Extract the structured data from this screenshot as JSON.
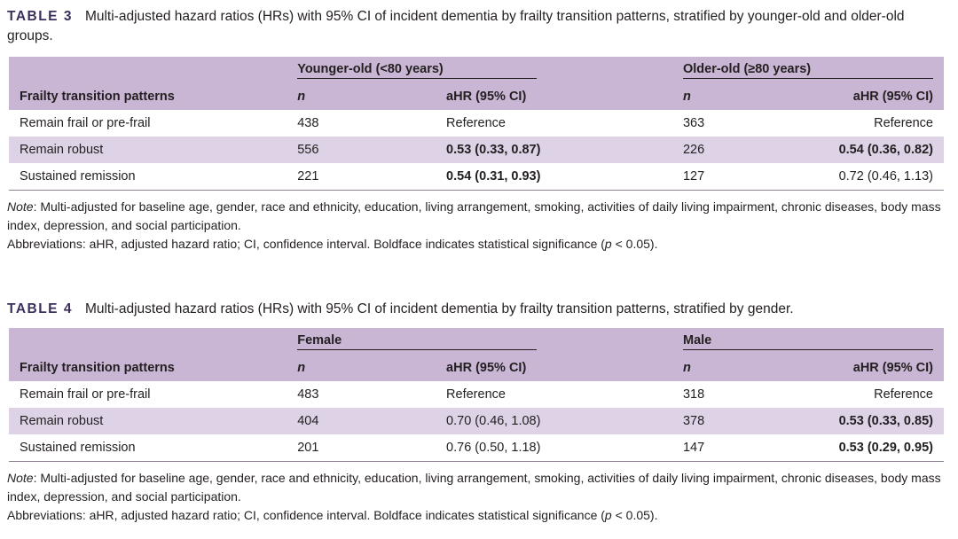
{
  "tables": [
    {
      "number": "TABLE 3",
      "caption": "Multi-adjusted hazard ratios (HRs) with 95% CI of incident dementia by frailty transition patterns, stratified by younger-old and older-old groups.",
      "group1": "Younger-old (<80 years)",
      "group2": "Older-old (≥80 years)",
      "row_header": "Frailty transition patterns",
      "n_label": "n",
      "hr_label": "aHR (95% CI)",
      "rows": [
        {
          "label": "Remain frail or pre-frail",
          "n1": "438",
          "hr1": "Reference",
          "n2": "363",
          "hr2": "Reference"
        },
        {
          "label": "Remain robust",
          "n1": "556",
          "hr1": "0.53 (0.33, 0.87)",
          "n2": "226",
          "hr2": "0.54 (0.36, 0.82)"
        },
        {
          "label": "Sustained remission",
          "n1": "221",
          "hr1": "0.54 (0.31, 0.93)",
          "n2": "127",
          "hr2": "0.72 (0.46, 1.13)"
        }
      ],
      "note_label": "Note",
      "note_text": ": Multi-adjusted for baseline age, gender, race and ethnicity, education, living arrangement, smoking, activities of daily living impairment, chronic diseases, body mass index, depression, and social participation.",
      "abbr_text": "Abbreviations: aHR, adjusted hazard ratio; CI, confidence interval. Boldface indicates statistical significance (",
      "abbr_p": "p",
      "abbr_end": " < 0.05)."
    },
    {
      "number": "TABLE 4",
      "caption": "Multi-adjusted hazard ratios (HRs) with 95% CI of incident dementia by frailty transition patterns, stratified by gender.",
      "group1": "Female",
      "group2": "Male",
      "row_header": "Frailty transition patterns",
      "n_label": "n",
      "hr_label": "aHR (95% CI)",
      "rows": [
        {
          "label": "Remain frail or pre-frail",
          "n1": "483",
          "hr1": "Reference",
          "n2": "318",
          "hr2": "Reference"
        },
        {
          "label": "Remain robust",
          "n1": "404",
          "hr1": "0.70 (0.46, 1.08)",
          "n2": "378",
          "hr2": "0.53 (0.33, 0.85)"
        },
        {
          "label": "Sustained remission",
          "n1": "201",
          "hr1": "0.76 (0.50, 1.18)",
          "n2": "147",
          "hr2": "0.53 (0.29, 0.95)"
        }
      ],
      "note_label": "Note",
      "note_text": ": Multi-adjusted for baseline age, gender, race and ethnicity, education, living arrangement, smoking, activities of daily living impairment, chronic diseases, body mass index, depression, and social participation.",
      "abbr_text": "Abbreviations: aHR, adjusted hazard ratio; CI, confidence interval. Boldface indicates statistical significance (",
      "abbr_p": "p",
      "abbr_end": " < 0.05)."
    }
  ]
}
